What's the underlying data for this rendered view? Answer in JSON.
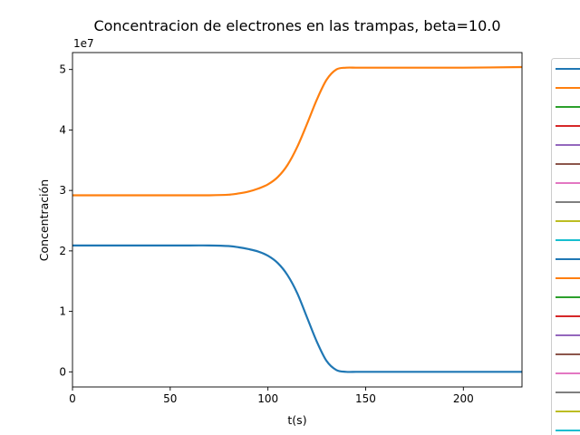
{
  "chart_data": {
    "type": "line",
    "title": "Concentracion de electrones en las trampas, beta=10.0",
    "xlabel": "t(s)",
    "ylabel": "Concentración",
    "offset_label": "1e7",
    "xlim": [
      0,
      230
    ],
    "ylim": [
      -0.25,
      5.28
    ],
    "y_scale_factor": 10000000,
    "x_ticks": [
      0,
      50,
      100,
      150,
      200
    ],
    "y_ticks": [
      0,
      1,
      2,
      3,
      4,
      5
    ],
    "grid": false,
    "legend": {
      "placement": "right, partially outside plot area, clipped"
    },
    "x": [
      0,
      20,
      40,
      60,
      70,
      80,
      85,
      90,
      95,
      100,
      105,
      110,
      115,
      120,
      125,
      130,
      135,
      140,
      145,
      150,
      160,
      180,
      200,
      230
    ],
    "series": [
      {
        "color": "#ff7f0e",
        "values": [
          2.92,
          2.92,
          2.92,
          2.92,
          2.92,
          2.93,
          2.95,
          2.98,
          3.03,
          3.1,
          3.22,
          3.42,
          3.72,
          4.1,
          4.5,
          4.83,
          5.0,
          5.03,
          5.03,
          5.03,
          5.03,
          5.03,
          5.03,
          5.04
        ]
      },
      {
        "color": "#1f77b4",
        "values": [
          2.09,
          2.09,
          2.09,
          2.09,
          2.09,
          2.08,
          2.06,
          2.03,
          1.99,
          1.92,
          1.8,
          1.6,
          1.3,
          0.9,
          0.5,
          0.18,
          0.03,
          0.0,
          0.0,
          0.0,
          0.0,
          0.0,
          0.0,
          0.0
        ]
      }
    ],
    "legend_line_colors": [
      "#1f77b4",
      "#ff7f0e",
      "#2ca02c",
      "#d62728",
      "#9467bd",
      "#8c564b",
      "#e377c2",
      "#7f7f7f",
      "#bcbd22",
      "#17becf",
      "#1f77b4",
      "#ff7f0e",
      "#2ca02c",
      "#d62728",
      "#9467bd",
      "#8c564b",
      "#e377c2",
      "#7f7f7f",
      "#bcbd22",
      "#17becf"
    ]
  }
}
